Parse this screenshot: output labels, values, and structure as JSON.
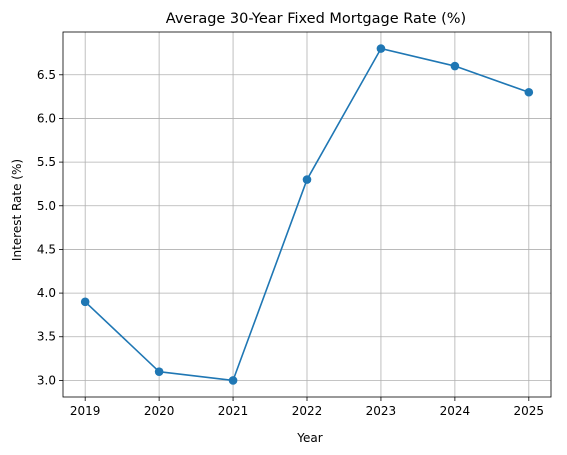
{
  "chart_data": {
    "type": "line",
    "title": "Average 30-Year Fixed Mortgage Rate (%)",
    "xlabel": "Year",
    "ylabel": "Interest Rate (%)",
    "x": [
      2019,
      2020,
      2021,
      2022,
      2023,
      2024,
      2025
    ],
    "xticks": [
      "2019",
      "2020",
      "2021",
      "2022",
      "2023",
      "2024",
      "2025"
    ],
    "yticks": [
      "3.0",
      "3.5",
      "4.0",
      "4.5",
      "5.0",
      "5.5",
      "6.0",
      "6.5"
    ],
    "series": [
      {
        "values": [
          3.9,
          3.1,
          3.0,
          5.3,
          6.8,
          6.6,
          6.3
        ],
        "color": "#1f77b4",
        "marker": "circle"
      }
    ],
    "xlim": [
      2018.7,
      2025.3
    ],
    "ylim": [
      2.81,
      6.99
    ],
    "grid": true
  }
}
